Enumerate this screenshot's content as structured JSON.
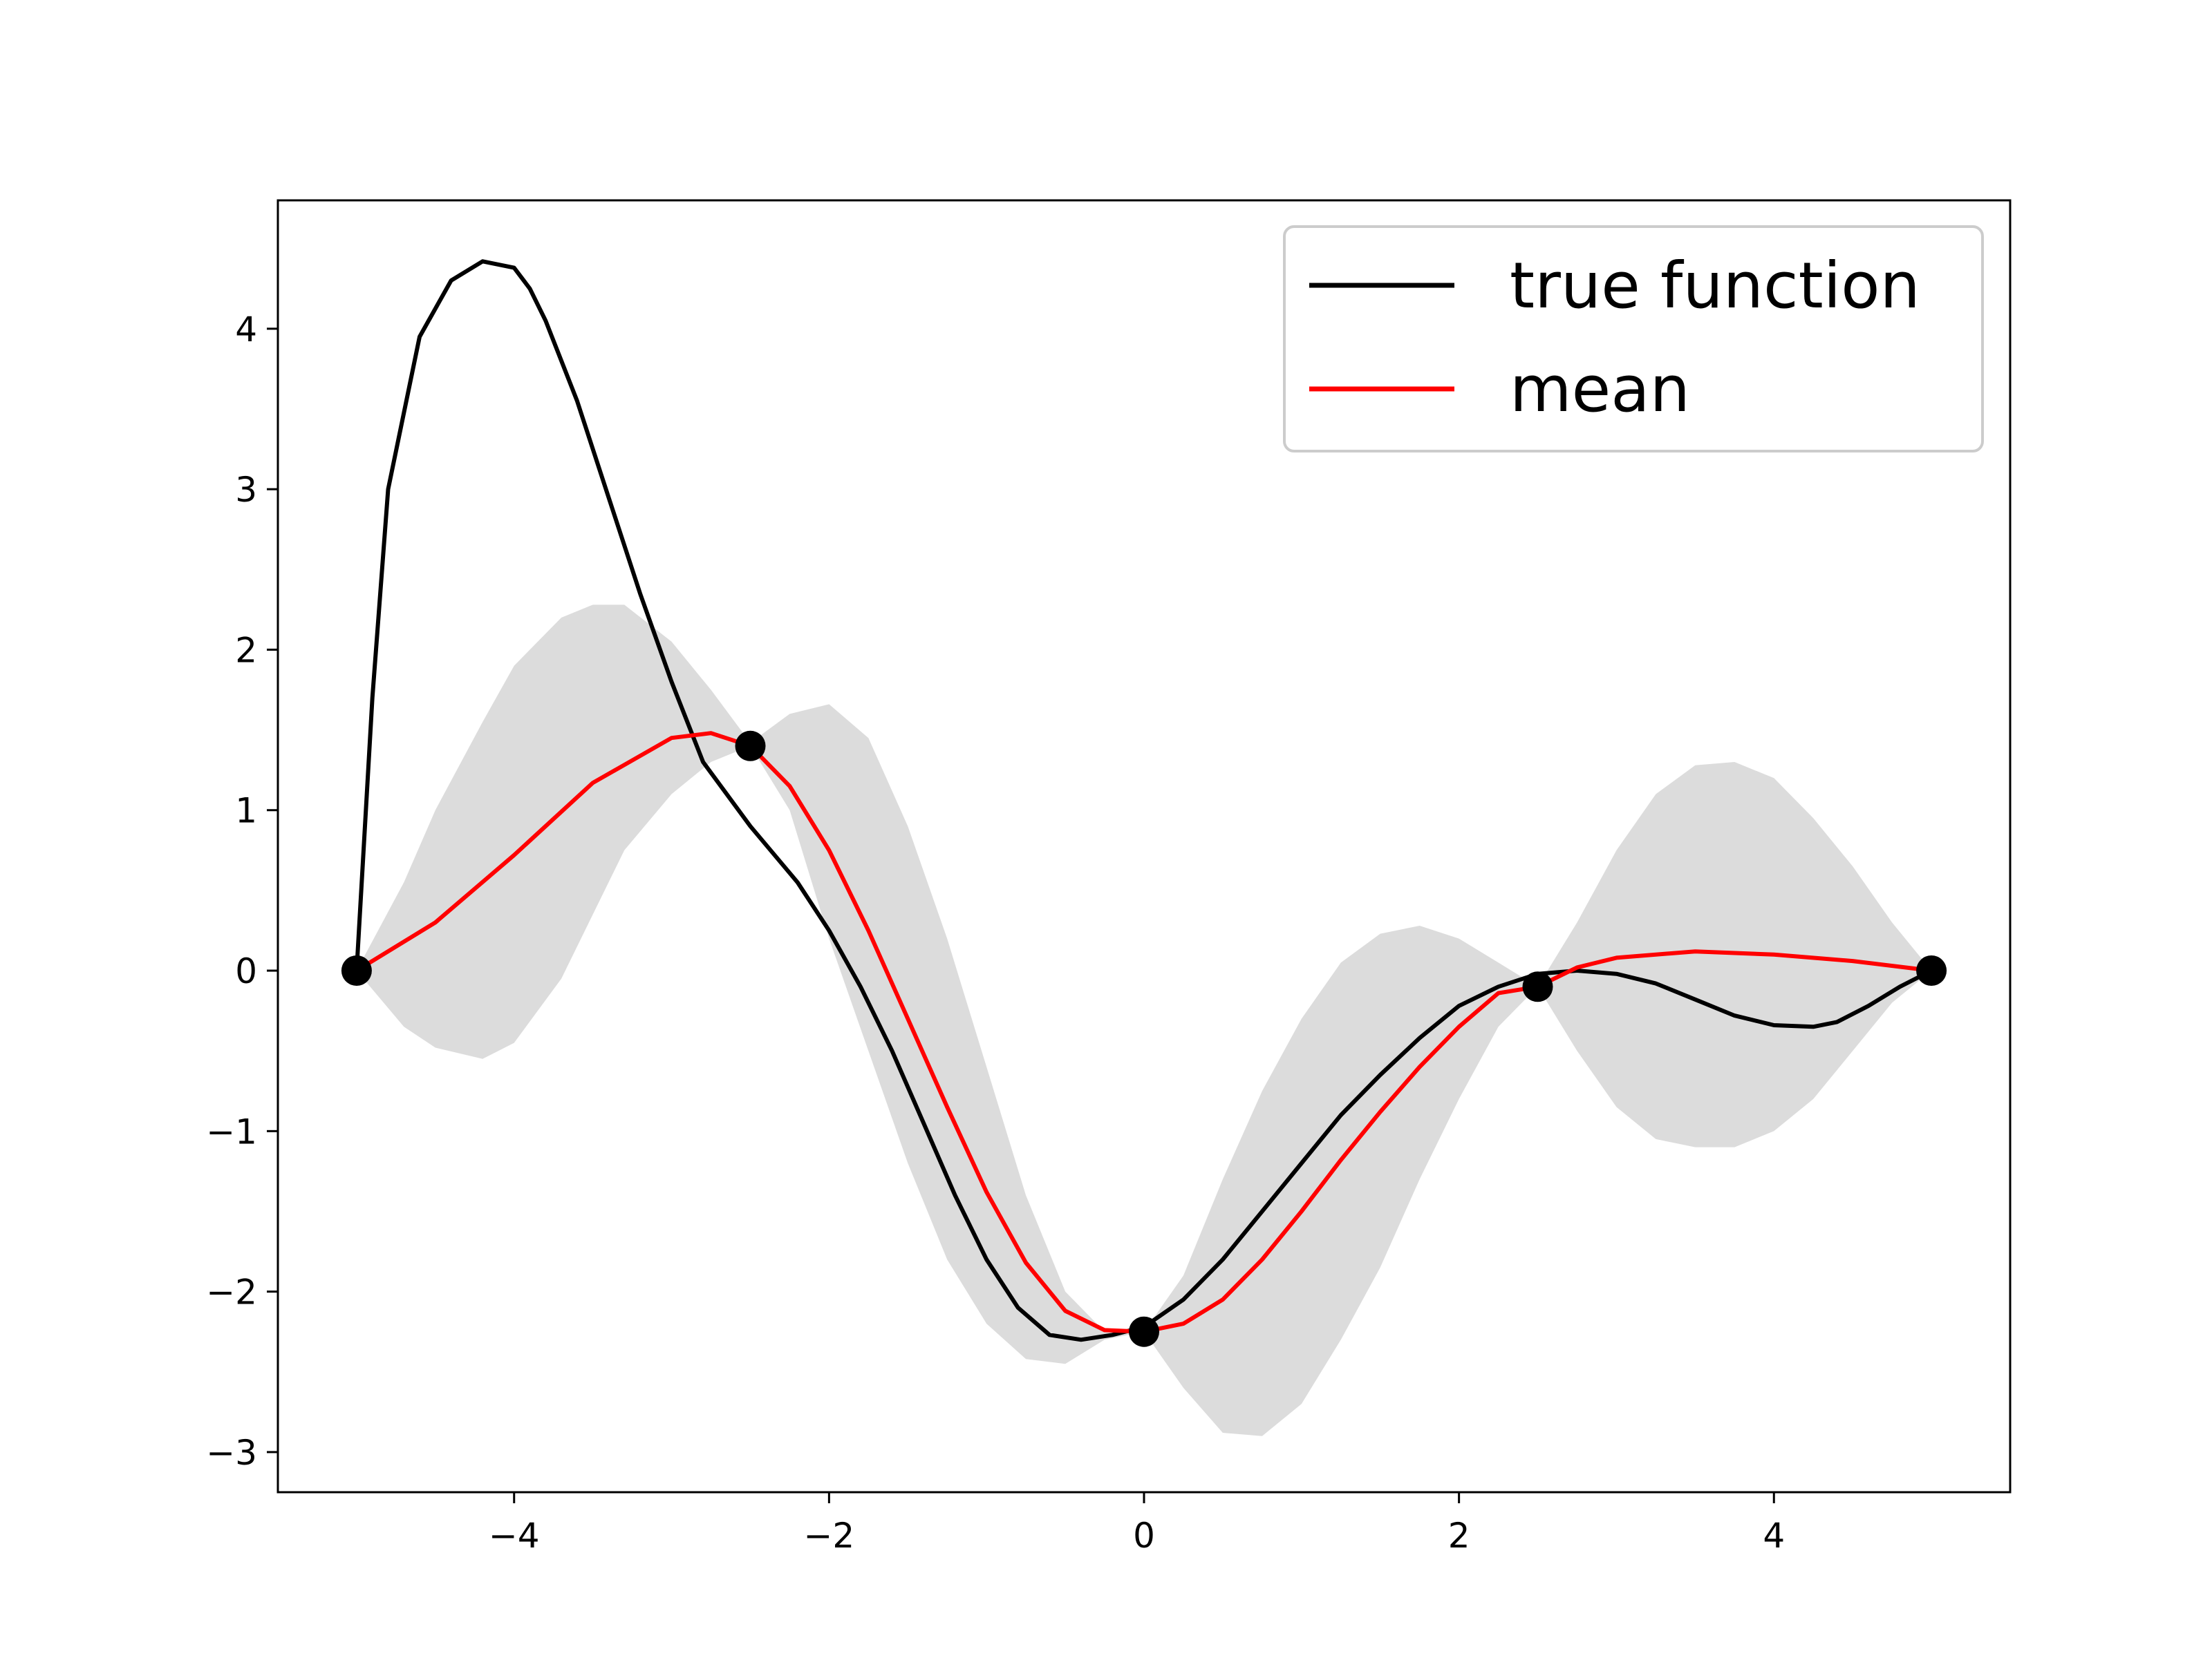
{
  "chart_data": {
    "type": "line",
    "title": "",
    "xlabel": "",
    "ylabel": "",
    "xlim": [
      -5.5,
      5.5
    ],
    "ylim": [
      -3.25,
      4.8
    ],
    "grid": false,
    "legend_placement": "top-right",
    "xticks": [
      {
        "value": -4,
        "label": "−4"
      },
      {
        "value": -2,
        "label": "−2"
      },
      {
        "value": 0,
        "label": "0"
      },
      {
        "value": 2,
        "label": "2"
      },
      {
        "value": 4,
        "label": "4"
      }
    ],
    "yticks": [
      {
        "value": -3,
        "label": "−3"
      },
      {
        "value": -2,
        "label": "−2"
      },
      {
        "value": -1,
        "label": "−1"
      },
      {
        "value": 0,
        "label": "0"
      },
      {
        "value": 1,
        "label": "1"
      },
      {
        "value": 2,
        "label": "2"
      },
      {
        "value": 3,
        "label": "3"
      },
      {
        "value": 4,
        "label": "4"
      }
    ],
    "series": [
      {
        "name": "true function",
        "color": "#000000",
        "x": [
          -5.0,
          -4.9,
          -4.8,
          -4.6,
          -4.4,
          -4.2,
          -4.0,
          -3.9,
          -3.8,
          -3.6,
          -3.4,
          -3.2,
          -3.0,
          -2.8,
          -2.5,
          -2.2,
          -2.0,
          -1.8,
          -1.6,
          -1.4,
          -1.2,
          -1.0,
          -0.8,
          -0.6,
          -0.4,
          -0.2,
          0.0,
          0.25,
          0.5,
          0.75,
          1.0,
          1.25,
          1.5,
          1.75,
          2.0,
          2.25,
          2.5,
          2.75,
          3.0,
          3.25,
          3.5,
          3.75,
          4.0,
          4.25,
          4.4,
          4.6,
          4.8,
          5.0
        ],
        "y": [
          0.0,
          1.7,
          3.0,
          3.95,
          4.3,
          4.42,
          4.38,
          4.25,
          4.05,
          3.55,
          2.95,
          2.35,
          1.8,
          1.3,
          0.9,
          0.55,
          0.25,
          -0.1,
          -0.5,
          -0.95,
          -1.4,
          -1.8,
          -2.1,
          -2.27,
          -2.3,
          -2.27,
          -2.22,
          -2.05,
          -1.8,
          -1.5,
          -1.2,
          -0.9,
          -0.65,
          -0.42,
          -0.22,
          -0.1,
          -0.02,
          0.0,
          -0.02,
          -0.08,
          -0.18,
          -0.28,
          -0.34,
          -0.35,
          -0.32,
          -0.22,
          -0.1,
          0.0
        ]
      },
      {
        "name": "mean",
        "color": "#ff0000",
        "x": [
          -5.0,
          -4.5,
          -4.0,
          -3.5,
          -3.0,
          -2.75,
          -2.5,
          -2.25,
          -2.0,
          -1.75,
          -1.5,
          -1.25,
          -1.0,
          -0.75,
          -0.5,
          -0.25,
          0.0,
          0.25,
          0.5,
          0.75,
          1.0,
          1.25,
          1.5,
          1.75,
          2.0,
          2.25,
          2.5,
          2.75,
          3.0,
          3.5,
          4.0,
          4.5,
          5.0
        ],
        "y": [
          0.0,
          0.3,
          0.72,
          1.17,
          1.45,
          1.48,
          1.4,
          1.15,
          0.75,
          0.25,
          -0.3,
          -0.85,
          -1.38,
          -1.82,
          -2.12,
          -2.24,
          -2.25,
          -2.2,
          -2.05,
          -1.8,
          -1.5,
          -1.18,
          -0.88,
          -0.6,
          -0.35,
          -0.14,
          -0.1,
          0.02,
          0.08,
          0.12,
          0.1,
          0.06,
          0.0
        ]
      }
    ],
    "band": {
      "color": "#dcdcdc",
      "x": [
        -5.0,
        -4.7,
        -4.5,
        -4.2,
        -4.0,
        -3.7,
        -3.5,
        -3.3,
        -3.0,
        -2.75,
        -2.5,
        -2.25,
        -2.0,
        -1.75,
        -1.5,
        -1.25,
        -1.0,
        -0.75,
        -0.5,
        -0.25,
        0.0,
        0.25,
        0.5,
        0.75,
        1.0,
        1.25,
        1.5,
        1.75,
        2.0,
        2.25,
        2.5,
        2.75,
        3.0,
        3.25,
        3.5,
        3.75,
        4.0,
        4.25,
        4.5,
        4.75,
        5.0
      ],
      "lower": [
        0.0,
        -0.35,
        -0.48,
        -0.55,
        -0.45,
        -0.05,
        0.35,
        0.75,
        1.1,
        1.3,
        1.4,
        1.0,
        0.2,
        -0.5,
        -1.2,
        -1.8,
        -2.2,
        -2.42,
        -2.45,
        -2.3,
        -2.25,
        -2.6,
        -2.88,
        -2.9,
        -2.7,
        -2.3,
        -1.85,
        -1.3,
        -0.8,
        -0.35,
        -0.1,
        -0.5,
        -0.85,
        -1.05,
        -1.1,
        -1.1,
        -1.0,
        -0.8,
        -0.5,
        -0.2,
        0.0
      ],
      "upper": [
        0.0,
        0.55,
        1.0,
        1.55,
        1.9,
        2.2,
        2.28,
        2.28,
        2.05,
        1.75,
        1.42,
        1.6,
        1.66,
        1.45,
        0.9,
        0.2,
        -0.6,
        -1.4,
        -2.0,
        -2.25,
        -2.25,
        -1.9,
        -1.3,
        -0.75,
        -0.3,
        0.05,
        0.23,
        0.28,
        0.2,
        0.05,
        -0.1,
        0.3,
        0.75,
        1.1,
        1.28,
        1.3,
        1.2,
        0.95,
        0.65,
        0.3,
        0.0
      ]
    },
    "points": {
      "color": "#000000",
      "x": [
        -5.0,
        -2.5,
        0.0,
        2.5,
        5.0
      ],
      "y": [
        0.0,
        1.4,
        -2.25,
        -0.1,
        0.0
      ]
    }
  }
}
